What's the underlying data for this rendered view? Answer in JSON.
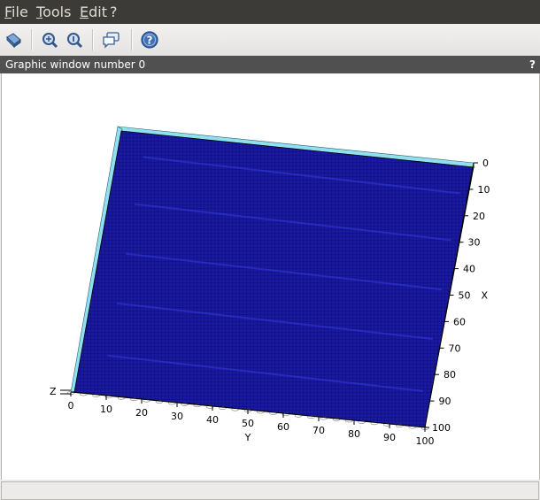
{
  "menu": {
    "file": "File",
    "tools": "Tools",
    "edit": "Edit",
    "help": "?"
  },
  "toolbar": {
    "icons": [
      "rotate-icon",
      "zoom-in-icon",
      "zoom-original-icon",
      "datatip-icon",
      "help-icon"
    ]
  },
  "window": {
    "title": "Graphic window number 0",
    "help": "?"
  },
  "chart_data": {
    "type": "surface",
    "title": "",
    "surface_color": "#1a1aa0",
    "edge_color": "#90e0f0",
    "axes": {
      "x": {
        "label": "X",
        "range": [
          0,
          100
        ],
        "ticks": [
          0,
          10,
          20,
          30,
          40,
          50,
          60,
          70,
          80,
          90,
          100
        ]
      },
      "y": {
        "label": "Y",
        "range": [
          0,
          100
        ],
        "ticks": [
          0,
          10,
          20,
          30,
          40,
          50,
          60,
          70,
          80,
          90,
          100
        ]
      },
      "z": {
        "label": "Z"
      }
    }
  }
}
